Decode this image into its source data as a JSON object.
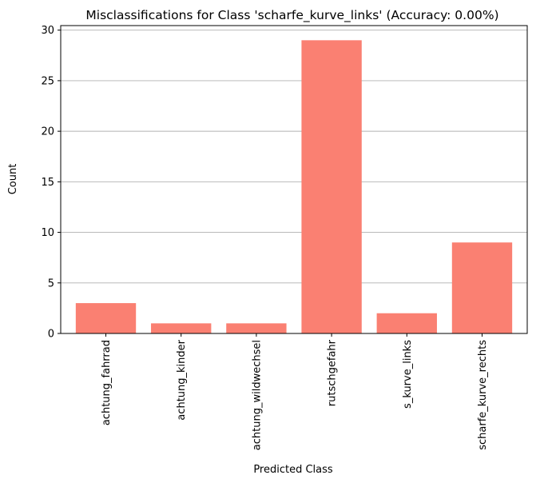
{
  "chart_data": {
    "type": "bar",
    "title": "Misclassifications for Class 'scharfe_kurve_links' (Accuracy: 0.00%)",
    "xlabel": "Predicted Class",
    "ylabel": "Count",
    "categories": [
      "achtung_fahrrad",
      "achtung_kinder",
      "achtung_wildwechsel",
      "rutschgefahr",
      "s_kurve_links",
      "scharfe_kurve_rechts"
    ],
    "values": [
      3,
      1,
      1,
      29,
      2,
      9
    ],
    "ylim": [
      0,
      30.45
    ],
    "yticks": [
      0,
      5,
      10,
      15,
      20,
      25,
      30
    ],
    "grid": "y-axis",
    "legend": "none",
    "bar_color": "#fa8072"
  }
}
